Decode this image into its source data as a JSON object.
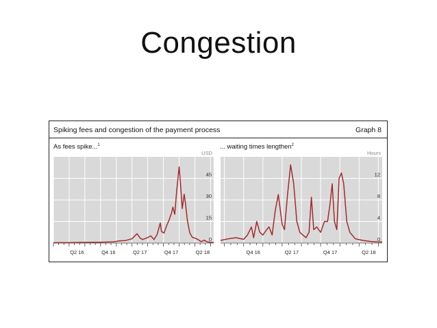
{
  "slide": {
    "title": "Congestion"
  },
  "figure": {
    "title": "Spiking fees and congestion of the payment process",
    "number": "Graph 8"
  },
  "colors": {
    "series": "#a32a2a",
    "plot_bg": "#d9d9d9",
    "grid": "#ffffff"
  },
  "chart_data": [
    {
      "type": "line",
      "title": "As fees spike...",
      "title_footnote": "1",
      "ylabel": "USD",
      "ylim": [
        0,
        60
      ],
      "yticks": [
        0,
        15,
        30,
        45
      ],
      "ytick_labels": [
        "0",
        "15",
        "30",
        "45"
      ],
      "xlim": [
        2016.0,
        2018.55
      ],
      "xtick_labels": [
        {
          "label": "Q2 16",
          "x": 2016.375
        },
        {
          "label": "Q4 16",
          "x": 2016.875
        },
        {
          "label": "Q2 17",
          "x": 2017.375
        },
        {
          "label": "Q4 17",
          "x": 2017.875
        },
        {
          "label": "Q2 18",
          "x": 2018.375
        }
      ],
      "grid": true,
      "series": [
        {
          "x": [
            2016.0,
            2016.25,
            2016.5,
            2016.75,
            2016.95,
            2017.05,
            2017.15,
            2017.25,
            2017.33,
            2017.38,
            2017.42,
            2017.48,
            2017.55,
            2017.6,
            2017.65,
            2017.7,
            2017.72,
            2017.76,
            2017.8,
            2017.84,
            2017.88,
            2017.9,
            2017.93,
            2017.96,
            2018.0,
            2018.02,
            2018.05,
            2018.08,
            2018.1,
            2018.13,
            2018.17,
            2018.21,
            2018.25,
            2018.3,
            2018.35,
            2018.4,
            2018.45,
            2018.5,
            2018.55
          ],
          "y": [
            0.3,
            0.3,
            0.5,
            0.6,
            0.8,
            1.5,
            1.8,
            3.0,
            6.5,
            3.5,
            2.5,
            3.5,
            5.0,
            2.5,
            6.0,
            14.0,
            8.0,
            7.0,
            12.0,
            16.0,
            21.0,
            25.0,
            20.0,
            36.0,
            53.0,
            42.0,
            24.0,
            34.0,
            28.0,
            16.0,
            7.0,
            4.0,
            3.5,
            2.5,
            1.0,
            2.0,
            0.8,
            0.5,
            0.3
          ]
        }
      ]
    },
    {
      "type": "line",
      "title": "... waiting times lengthen",
      "title_footnote": "2",
      "ylabel": "Hours",
      "ylim": [
        0,
        16
      ],
      "yticks": [
        0,
        4,
        8,
        12
      ],
      "ytick_labels": [
        "0",
        "4",
        "8",
        "12"
      ],
      "xlim": [
        2016.45,
        2018.55
      ],
      "xtick_labels": [
        {
          "label": "Q4 16",
          "x": 2016.875
        },
        {
          "label": "Q2 17",
          "x": 2017.375
        },
        {
          "label": "Q4 17",
          "x": 2017.875
        },
        {
          "label": "Q2 18",
          "x": 2018.375
        }
      ],
      "grid": true,
      "series": [
        {
          "x": [
            2016.45,
            2016.55,
            2016.65,
            2016.75,
            2016.8,
            2016.85,
            2016.88,
            2016.92,
            2016.96,
            2017.0,
            2017.05,
            2017.08,
            2017.12,
            2017.16,
            2017.2,
            2017.25,
            2017.28,
            2017.32,
            2017.36,
            2017.4,
            2017.44,
            2017.48,
            2017.52,
            2017.56,
            2017.6,
            2017.63,
            2017.66,
            2017.7,
            2017.75,
            2017.8,
            2017.84,
            2017.87,
            2017.9,
            2017.93,
            2017.96,
            2017.99,
            2018.02,
            2018.05,
            2018.09,
            2018.13,
            2018.2,
            2018.3,
            2018.4,
            2018.5,
            2018.55
          ],
          "y": [
            0.5,
            0.8,
            1.0,
            0.7,
            1.5,
            3.0,
            1.0,
            4.0,
            2.0,
            1.5,
            2.5,
            3.0,
            1.5,
            6.0,
            9.0,
            3.5,
            2.5,
            9.0,
            14.5,
            11.0,
            4.0,
            2.0,
            1.5,
            1.0,
            2.0,
            8.5,
            2.5,
            3.0,
            2.0,
            4.0,
            4.0,
            7.0,
            11.0,
            4.0,
            2.5,
            12.0,
            13.0,
            11.0,
            4.0,
            2.0,
            0.8,
            0.5,
            0.3,
            0.2,
            0.2
          ]
        }
      ]
    }
  ]
}
